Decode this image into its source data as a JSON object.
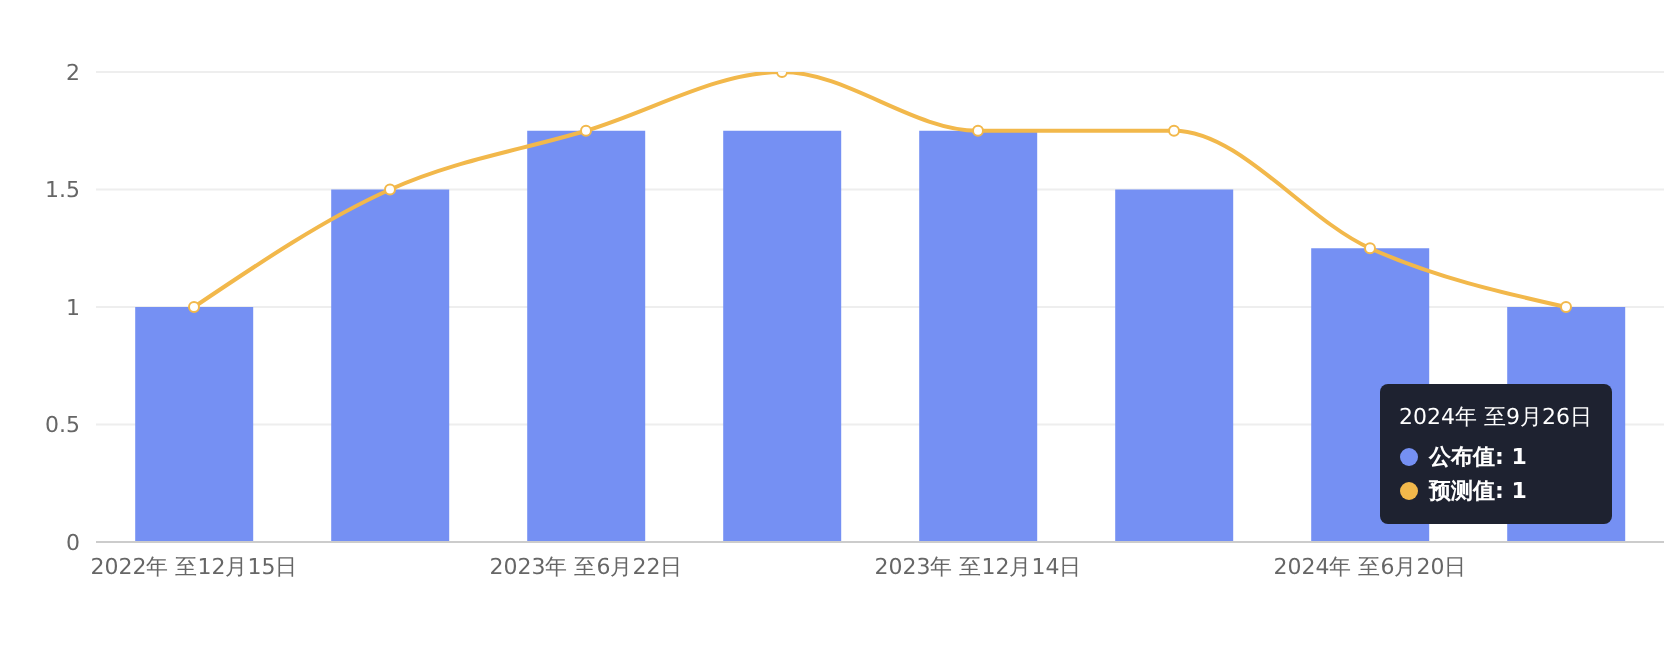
{
  "chart_data": {
    "type": "bar",
    "categories": [
      "2022年 至12月15日",
      null,
      "2023年 至6月22日",
      null,
      "2023年 至12月14日",
      null,
      "2024年 至6月20日",
      null
    ],
    "series": [
      {
        "name": "公布值",
        "color": "#7590f3",
        "values": [
          1,
          1.5,
          1.75,
          1.75,
          1.75,
          1.5,
          1.25,
          1
        ]
      },
      {
        "name": "预测值",
        "type": "line",
        "color": "#f2b84b",
        "values": [
          1,
          1.5,
          1.75,
          2,
          1.75,
          1.75,
          1.25,
          1
        ]
      }
    ],
    "ylim": [
      0,
      2
    ],
    "yticks": [
      0,
      0.5,
      1,
      1.5,
      2
    ],
    "grid": "y",
    "legend": "bottom right",
    "marker": "circle",
    "line_style": "solid",
    "annotations": [
      "2024年 至9月26日",
      ": 1",
      ": 1"
    ]
  }
}
